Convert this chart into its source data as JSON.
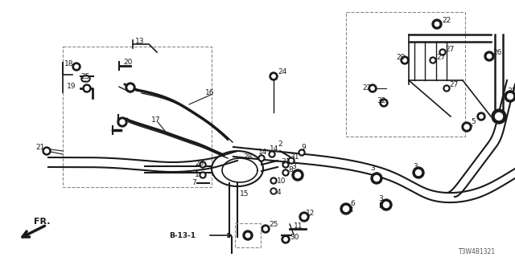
{
  "fig_width": 6.4,
  "fig_height": 3.2,
  "dpi": 100,
  "bg_color": "#ffffff",
  "line_color": "#1a1a1a",
  "part_number_text": "T3W4B1321",
  "ref_label": "B-13-1",
  "fr_label": "FR."
}
